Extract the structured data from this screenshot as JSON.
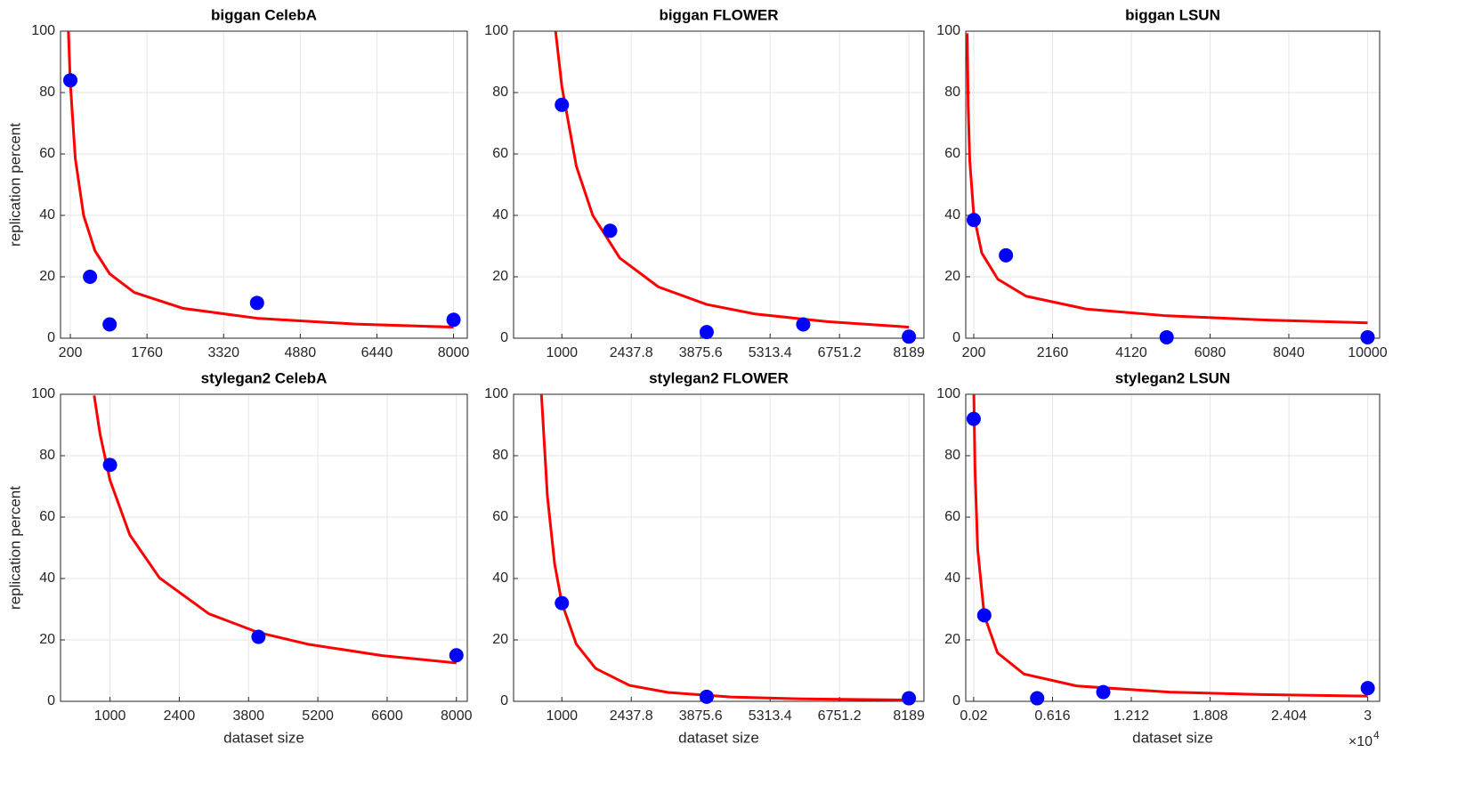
{
  "chart_data": [
    {
      "type": "scatter",
      "title": "biggan CelebA",
      "ylabel": "replication percent",
      "xlim": [
        0,
        8280
      ],
      "xticks": [
        200,
        1760,
        3320,
        4880,
        6440,
        8000
      ],
      "ylim": [
        0,
        100
      ],
      "yticks": [
        0,
        20,
        40,
        60,
        80,
        100
      ],
      "grid": true,
      "series": [
        {
          "kind": "line",
          "color": "#ff0000",
          "x": [
            160,
            200,
            300,
            470,
            700,
            1000,
            1500,
            2500,
            4000,
            6000,
            8000
          ],
          "values": [
            100,
            83,
            58.6,
            40,
            28.5,
            21,
            14.9,
            9.7,
            6.5,
            4.6,
            3.6
          ]
        },
        {
          "kind": "points",
          "color": "#0000ff",
          "x": [
            200,
            600,
            1000,
            4000,
            8000
          ],
          "values": [
            84,
            20,
            4.5,
            11.5,
            6
          ]
        }
      ]
    },
    {
      "type": "scatter",
      "title": "biggan FLOWER",
      "xlim": [
        0,
        8500
      ],
      "xticks": [
        1000,
        2437.8,
        3875.6,
        5313.4,
        6751.2,
        8189
      ],
      "ylim": [
        0,
        100
      ],
      "yticks": [
        0,
        20,
        40,
        60,
        80,
        100
      ],
      "grid": true,
      "series": [
        {
          "kind": "line",
          "color": "#ff0000",
          "x": [
            870,
            1000,
            1300,
            1640,
            2200,
            3000,
            4000,
            5000,
            6500,
            8189
          ],
          "values": [
            100,
            82,
            56,
            40,
            26.1,
            16.7,
            11,
            7.9,
            5.4,
            3.6
          ]
        },
        {
          "kind": "points",
          "color": "#0000ff",
          "x": [
            1000,
            2000,
            4000,
            6000,
            8189
          ],
          "values": [
            76,
            35,
            2,
            4.5,
            0.5
          ]
        }
      ]
    },
    {
      "type": "scatter",
      "title": "biggan LSUN",
      "xlim": [
        0,
        10300
      ],
      "xticks": [
        200,
        2160,
        4120,
        6080,
        8040,
        10000
      ],
      "ylim": [
        0,
        100
      ],
      "yticks": [
        0,
        20,
        40,
        60,
        80,
        100
      ],
      "grid": true,
      "series": [
        {
          "kind": "line",
          "color": "#ff0000",
          "x": [
            36,
            60,
            100,
            200,
            400,
            800,
            1500,
            3000,
            5000,
            7500,
            10000
          ],
          "values": [
            99.3,
            75.7,
            57.8,
            40,
            27.7,
            19.2,
            13.7,
            9.5,
            7.3,
            5.9,
            5
          ]
        },
        {
          "kind": "points",
          "color": "#0000ff",
          "x": [
            200,
            1000,
            5000,
            10000
          ],
          "values": [
            38.5,
            27,
            0.3,
            0.3
          ]
        }
      ]
    },
    {
      "type": "scatter",
      "title": "stylegan2 CelebA",
      "ylabel": "replication percent",
      "xlabel": "dataset size",
      "xlim": [
        0,
        8220
      ],
      "xticks": [
        1000,
        2400,
        3800,
        5200,
        6600,
        8000
      ],
      "ylim": [
        0,
        100
      ],
      "yticks": [
        0,
        20,
        40,
        60,
        80,
        100
      ],
      "grid": true,
      "series": [
        {
          "kind": "line",
          "color": "#ff0000",
          "x": [
            680,
            800,
            1000,
            1400,
            2000,
            3000,
            4000,
            5000,
            6500,
            8000
          ],
          "values": [
            99.6,
            86.9,
            72,
            54.2,
            40.2,
            28.5,
            22.4,
            18.6,
            14.9,
            12.5
          ]
        },
        {
          "kind": "points",
          "color": "#0000ff",
          "x": [
            1000,
            4000,
            8000
          ],
          "values": [
            77,
            21,
            15
          ]
        }
      ]
    },
    {
      "type": "scatter",
      "title": "stylegan2 FLOWER",
      "xlabel": "dataset size",
      "xlim": [
        0,
        8500
      ],
      "xticks": [
        1000,
        2437.8,
        3875.6,
        5313.4,
        6751.2,
        8189
      ],
      "ylim": [
        0,
        100
      ],
      "yticks": [
        0,
        20,
        40,
        60,
        80,
        100
      ],
      "grid": true,
      "series": [
        {
          "kind": "line",
          "color": "#ff0000",
          "x": [
            577,
            700,
            850,
            1000,
            1300,
            1700,
            2400,
            3200,
            4500,
            6000,
            8189
          ],
          "values": [
            100,
            66.9,
            44.8,
            32,
            18.6,
            10.7,
            5.2,
            2.9,
            1.4,
            0.78,
            0.41
          ]
        },
        {
          "kind": "points",
          "color": "#0000ff",
          "x": [
            1000,
            4000,
            8189
          ],
          "values": [
            32,
            1.5,
            1
          ]
        }
      ]
    },
    {
      "type": "scatter",
      "title": "stylegan2 LSUN",
      "xlabel": "dataset size",
      "x_multiplier": {
        "base": "×10",
        "exponent": "4"
      },
      "xlim": [
        -0.04,
        3.09
      ],
      "xticks": [
        0.02,
        0.616,
        1.212,
        1.808,
        2.404,
        3
      ],
      "ylim": [
        0,
        100
      ],
      "yticks": [
        0,
        20,
        40,
        60,
        80,
        100
      ],
      "grid": true,
      "series": [
        {
          "kind": "line",
          "color": "#ff0000",
          "x": [
            0.0213,
            0.03,
            0.05,
            0.1,
            0.2,
            0.4,
            0.8,
            1.5,
            2.2,
            3
          ],
          "values": [
            100,
            75.5,
            49.6,
            28,
            15.8,
            8.9,
            5,
            3,
            2.2,
            1.7
          ]
        },
        {
          "kind": "points",
          "color": "#0000ff",
          "x": [
            0.02,
            0.1,
            0.5,
            1.0,
            3
          ],
          "values": [
            92,
            28,
            1,
            3,
            4.3
          ]
        }
      ]
    }
  ]
}
